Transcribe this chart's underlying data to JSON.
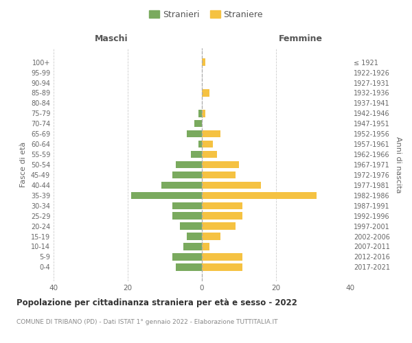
{
  "age_groups": [
    "100+",
    "95-99",
    "90-94",
    "85-89",
    "80-84",
    "75-79",
    "70-74",
    "65-69",
    "60-64",
    "55-59",
    "50-54",
    "45-49",
    "40-44",
    "35-39",
    "30-34",
    "25-29",
    "20-24",
    "15-19",
    "10-14",
    "5-9",
    "0-4"
  ],
  "birth_years": [
    "≤ 1921",
    "1922-1926",
    "1927-1931",
    "1932-1936",
    "1937-1941",
    "1942-1946",
    "1947-1951",
    "1952-1956",
    "1957-1961",
    "1962-1966",
    "1967-1971",
    "1972-1976",
    "1977-1981",
    "1982-1986",
    "1987-1991",
    "1992-1996",
    "1997-2001",
    "2002-2006",
    "2007-2011",
    "2012-2016",
    "2017-2021"
  ],
  "maschi": [
    0,
    0,
    0,
    0,
    0,
    1,
    2,
    4,
    1,
    3,
    7,
    8,
    11,
    19,
    8,
    8,
    6,
    4,
    5,
    8,
    7
  ],
  "femmine": [
    1,
    0,
    0,
    2,
    0,
    1,
    0,
    5,
    3,
    4,
    10,
    9,
    16,
    31,
    11,
    11,
    9,
    5,
    2,
    11,
    11
  ],
  "color_maschi": "#7aaa5e",
  "color_femmine": "#f5c242",
  "background_color": "#ffffff",
  "grid_color": "#cccccc",
  "title": "Popolazione per cittadinanza straniera per età e sesso - 2022",
  "subtitle": "COMUNE DI TRIBANO (PD) - Dati ISTAT 1° gennaio 2022 - Elaborazione TUTTITALIA.IT",
  "ylabel_left": "Fasce di età",
  "ylabel_right": "Anni di nascita",
  "xlabel_left": "Maschi",
  "xlabel_right": "Femmine",
  "legend_stranieri": "Stranieri",
  "legend_straniere": "Straniere",
  "xlim": [
    -40,
    40
  ],
  "bar_height": 0.7,
  "center_line_color": "#aaaaaa"
}
